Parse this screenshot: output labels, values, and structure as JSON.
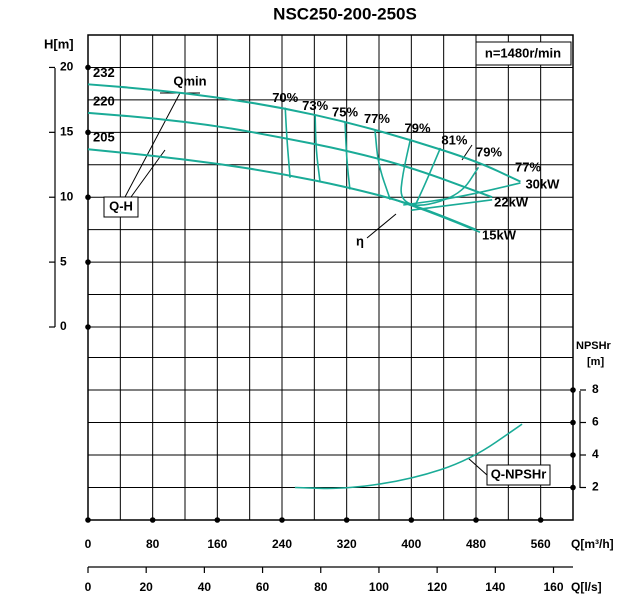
{
  "chart_data": {
    "type": "line",
    "title": "NSC250-200-250S",
    "xlabel": "Q[m³/h]",
    "x2label": "Q[l/s]",
    "ylabel": "H[m]",
    "y2label": [
      "NPSHr",
      "[m]"
    ],
    "xlim": [
      0,
      600
    ],
    "xticks": [
      0,
      80,
      160,
      240,
      320,
      400,
      480,
      560
    ],
    "x2lim": [
      0,
      166.7
    ],
    "x2ticks": [
      0,
      20,
      40,
      60,
      80,
      100,
      120,
      140,
      160
    ],
    "ylim": [
      0,
      22.5
    ],
    "yticks": [
      0,
      5,
      10,
      15,
      20
    ],
    "y2lim": [
      0,
      8
    ],
    "y2ticks": [
      2,
      4,
      6,
      8
    ],
    "grid": true,
    "series": [
      {
        "name": "232",
        "color": "#1aab97",
        "x": [
          0,
          80,
          160,
          240,
          320,
          400,
          480,
          535
        ],
        "values": [
          18.7,
          18.3,
          17.7,
          16.9,
          15.8,
          14.4,
          12.8,
          11.2
        ]
      },
      {
        "name": "220",
        "color": "#1aab97",
        "x": [
          0,
          80,
          160,
          240,
          320,
          400,
          500
        ],
        "values": [
          16.5,
          16.1,
          15.5,
          14.6,
          13.6,
          12.3,
          10.0
        ]
      },
      {
        "name": "205",
        "color": "#1aab97",
        "x": [
          0,
          80,
          160,
          240,
          320,
          400,
          480
        ],
        "values": [
          13.7,
          13.2,
          12.6,
          11.8,
          10.8,
          9.5,
          7.5
        ]
      },
      {
        "name": "70%",
        "color": "#1aab97",
        "x": [
          244,
          246,
          250
        ],
        "values": [
          16.9,
          14.5,
          11.5
        ]
      },
      {
        "name": "73%",
        "color": "#1aab97",
        "x": [
          281,
          282,
          287
        ],
        "values": [
          16.3,
          13.7,
          11.2
        ]
      },
      {
        "name": "75%",
        "color": "#1aab97",
        "x": [
          318,
          320,
          324
        ],
        "values": [
          15.8,
          12.9,
          10.6
        ]
      },
      {
        "name": "77%",
        "color": "#1aab97",
        "x": [
          355,
          359,
          374
        ],
        "values": [
          15.2,
          12.5,
          9.8
        ]
      },
      {
        "name": "79%",
        "color": "#1aab97",
        "x": [
          399,
          389,
          386,
          411,
          461,
          483
        ],
        "values": [
          14.5,
          11.7,
          9.8,
          9.2,
          10.2,
          12.3
        ]
      },
      {
        "name": "81%",
        "color": "#1aab97",
        "x": [
          436,
          417,
          405
        ],
        "values": [
          13.8,
          11.0,
          9.4
        ]
      },
      {
        "name": "30kW",
        "color": "#1aab97",
        "x": [
          390,
          460,
          535
        ],
        "values": [
          9.4,
          10.0,
          11.1
        ]
      },
      {
        "name": "22kW",
        "color": "#1aab97",
        "x": [
          400,
          450,
          500
        ],
        "values": [
          9.0,
          9.4,
          9.8
        ]
      },
      {
        "name": "15kW",
        "color": "#1aab97",
        "x": [
          380,
          430,
          485
        ],
        "values": [
          9.8,
          8.7,
          7.3
        ]
      },
      {
        "name": "Q-NPSHr",
        "color": "#1aab97",
        "axis": "y2",
        "x": [
          256,
          318,
          400,
          473,
          537
        ],
        "values": [
          2.0,
          1.9,
          2.5,
          3.7,
          5.9
        ]
      }
    ],
    "annotations": [
      "Qmin",
      "Q-H",
      "η",
      "79%",
      "77%",
      "n=1480r/min"
    ]
  }
}
